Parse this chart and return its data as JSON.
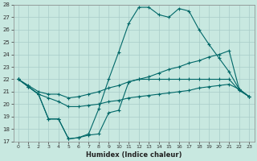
{
  "xlabel": "Humidex (Indice chaleur)",
  "bg_color": "#c8e8e0",
  "grid_color": "#a8ccc8",
  "line_color": "#006868",
  "xlim": [
    -0.5,
    23.5
  ],
  "ylim": [
    17,
    28
  ],
  "xticks": [
    0,
    1,
    2,
    3,
    4,
    5,
    6,
    7,
    8,
    9,
    10,
    11,
    12,
    13,
    14,
    15,
    16,
    17,
    18,
    19,
    20,
    21,
    22,
    23
  ],
  "yticks": [
    17,
    18,
    19,
    20,
    21,
    22,
    23,
    24,
    25,
    26,
    27,
    28
  ],
  "line_min_x": [
    0,
    1,
    2,
    3,
    4,
    5,
    6,
    7,
    8,
    9,
    10,
    11,
    12,
    13,
    14,
    15,
    16,
    17,
    18,
    19,
    20,
    21,
    22,
    23
  ],
  "line_min_y": [
    22.0,
    21.4,
    20.8,
    18.8,
    18.8,
    17.2,
    17.3,
    17.5,
    17.6,
    19.3,
    19.5,
    21.8,
    22.0,
    22.0,
    22.0,
    22.0,
    22.0,
    22.0,
    22.0,
    22.0,
    22.0,
    22.0,
    21.1,
    20.6
  ],
  "line_max_x": [
    0,
    1,
    2,
    3,
    4,
    5,
    6,
    7,
    8,
    9,
    10,
    11,
    12,
    13,
    14,
    15,
    16,
    17,
    18,
    19,
    20,
    21,
    22,
    23
  ],
  "line_max_y": [
    22.0,
    21.4,
    20.8,
    18.8,
    18.8,
    17.2,
    17.3,
    17.6,
    19.6,
    22.0,
    24.2,
    26.5,
    27.8,
    27.8,
    27.2,
    27.0,
    27.7,
    27.5,
    26.0,
    24.8,
    23.7,
    22.6,
    21.2,
    20.6
  ],
  "line_avg_x": [
    0,
    1,
    2,
    3,
    4,
    5,
    6,
    7,
    8,
    9,
    10,
    11,
    12,
    13,
    14,
    15,
    16,
    17,
    18,
    19,
    20,
    21,
    22,
    23
  ],
  "line_avg_y": [
    22.0,
    21.5,
    21.0,
    20.8,
    20.8,
    20.5,
    20.6,
    20.8,
    21.0,
    21.3,
    21.5,
    21.8,
    22.0,
    22.2,
    22.5,
    22.8,
    23.0,
    23.3,
    23.5,
    23.8,
    24.0,
    24.3,
    21.2,
    20.6
  ],
  "line_low_x": [
    0,
    1,
    2,
    3,
    4,
    5,
    6,
    7,
    8,
    9,
    10,
    11,
    12,
    13,
    14,
    15,
    16,
    17,
    18,
    19,
    20,
    21,
    22,
    23
  ],
  "line_low_y": [
    22.0,
    21.4,
    20.8,
    20.5,
    20.2,
    19.8,
    19.8,
    19.9,
    20.0,
    20.2,
    20.3,
    20.5,
    20.6,
    20.7,
    20.8,
    20.9,
    21.0,
    21.1,
    21.3,
    21.4,
    21.5,
    21.6,
    21.2,
    20.6
  ]
}
